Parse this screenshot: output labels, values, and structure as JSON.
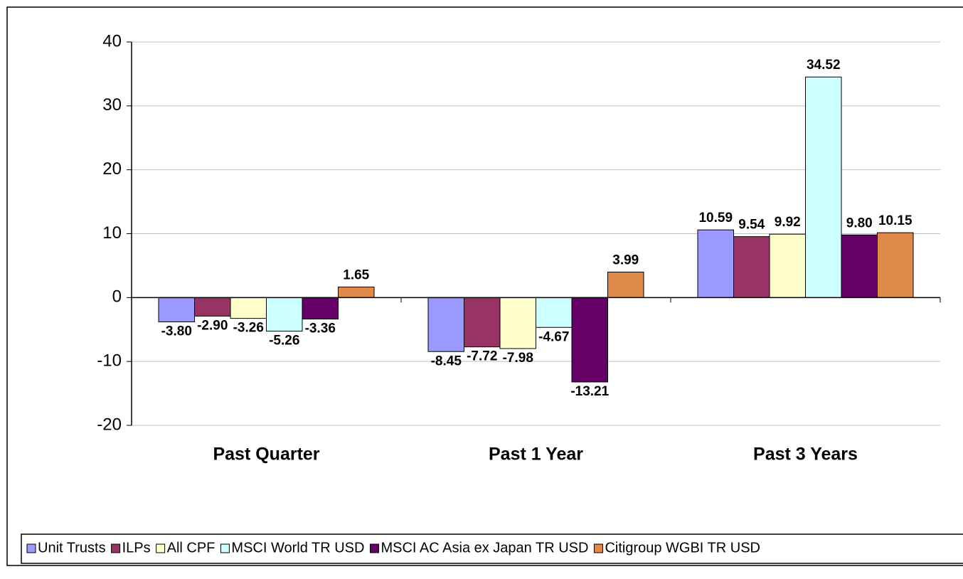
{
  "chart_data": {
    "type": "bar",
    "categories": [
      "Past Quarter",
      "Past 1 Year",
      "Past 3 Years"
    ],
    "series": [
      {
        "name": "Unit Trusts",
        "color": "#9999ff",
        "values": [
          -3.8,
          -8.45,
          10.59
        ],
        "value_labels": [
          "-3.80",
          "-8.45",
          "10.59"
        ]
      },
      {
        "name": "ILPs",
        "color": "#993366",
        "values": [
          -2.9,
          -7.72,
          9.54
        ],
        "value_labels": [
          "-2.90",
          "-7.72",
          "9.54"
        ]
      },
      {
        "name": "All CPF",
        "color": "#ffffcc",
        "values": [
          -3.26,
          -7.98,
          9.92
        ],
        "value_labels": [
          "-3.26",
          "-7.98",
          "9.92"
        ]
      },
      {
        "name": "MSCI World TR USD",
        "color": "#ccffff",
        "values": [
          -5.26,
          -4.67,
          34.52
        ],
        "value_labels": [
          "-5.26",
          "-4.67",
          "34.52"
        ]
      },
      {
        "name": "MSCI AC Asia ex Japan TR USD",
        "color": "#660066",
        "values": [
          -3.36,
          -13.21,
          9.8
        ],
        "value_labels": [
          "-3.36",
          "-13.21",
          "9.80"
        ]
      },
      {
        "name": "Citigroup WGBI TR USD",
        "color": "#e08a4a",
        "values": [
          1.65,
          3.99,
          10.15
        ],
        "value_labels": [
          "1.65",
          "3.99",
          "10.15"
        ]
      }
    ],
    "ylim": [
      -20,
      40
    ],
    "yticks": [
      -20,
      -10,
      0,
      10,
      20,
      30,
      40
    ],
    "grid": true,
    "legend": "bottom"
  }
}
